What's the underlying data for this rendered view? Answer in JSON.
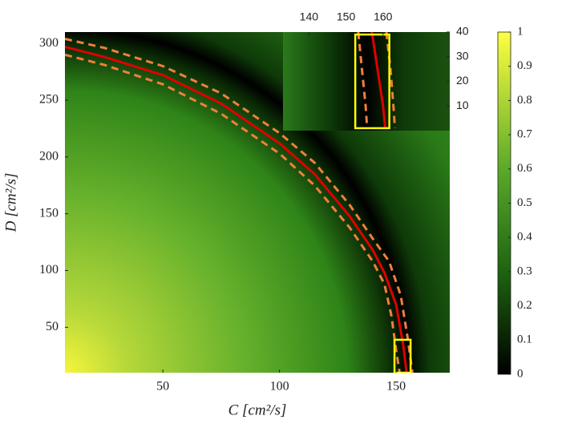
{
  "chart_data": [
    {
      "type": "line",
      "xlabel": "C [cm²/s]",
      "ylabel": "D [cm²/s]",
      "xlim": [
        8,
        173
      ],
      "ylim": [
        10,
        310
      ],
      "xticks": [
        50,
        100,
        150
      ],
      "yticks": [
        50,
        100,
        150,
        200,
        250,
        300
      ],
      "series": [
        {
          "color": "#f07f3a",
          "dashed": true,
          "x": [
            8,
            25,
            50,
            75,
            100,
            115,
            130,
            140,
            145,
            148,
            150,
            151.5
          ],
          "values": [
            290,
            281,
            264,
            238,
            203,
            175,
            138,
            108,
            88,
            60,
            30,
            10
          ]
        },
        {
          "color": "#f07f3a",
          "dashed": true,
          "x": [
            8,
            25,
            50,
            75,
            100,
            115,
            130,
            140,
            147,
            152,
            155,
            157
          ],
          "values": [
            304,
            296,
            280,
            256,
            221,
            195,
            158,
            128,
            108,
            78,
            40,
            10
          ]
        },
        {
          "color": "#e00000",
          "dashed": false,
          "x": [
            8,
            25,
            50,
            75,
            100,
            115,
            130,
            140,
            145,
            150,
            153,
            154.5
          ],
          "values": [
            297,
            288,
            272,
            247,
            212,
            185,
            148,
            118,
            98,
            70,
            35,
            10
          ]
        }
      ],
      "box": {
        "color": "#ffff00",
        "x": [
          149.3,
          156.2
        ],
        "y": [
          10,
          39
        ]
      }
    },
    {
      "type": "line",
      "xlim": [
        133,
        178
      ],
      "ylim": [
        0,
        40
      ],
      "xticks": [
        140,
        150,
        160
      ],
      "yticks": [
        10,
        20,
        30,
        40
      ],
      "xaxis_position": "top",
      "yaxis_position": "right",
      "series": [
        {
          "color": "#f07f3a",
          "dashed": true,
          "x": [
            153.3,
            154.3,
            155.3,
            155.7
          ],
          "values": [
            40,
            25,
            10,
            1
          ]
        },
        {
          "color": "#f07f3a",
          "dashed": true,
          "x": [
            160.9,
            162,
            162.8,
            163.2
          ],
          "values": [
            40,
            25,
            10,
            1
          ]
        },
        {
          "color": "#e00000",
          "dashed": false,
          "x": [
            157,
            158.5,
            160,
            160.6
          ],
          "values": [
            40,
            25,
            10,
            1
          ]
        }
      ],
      "box": {
        "color": "#ffff00",
        "x": [
          152.5,
          161.7
        ],
        "y": [
          1,
          39
        ]
      }
    },
    {
      "type": "colorbar",
      "ylim": [
        0,
        1
      ],
      "yticks": [
        0,
        0.1,
        0.2,
        0.3,
        0.4,
        0.5,
        0.6,
        0.7,
        0.8,
        0.9,
        1
      ]
    }
  ]
}
